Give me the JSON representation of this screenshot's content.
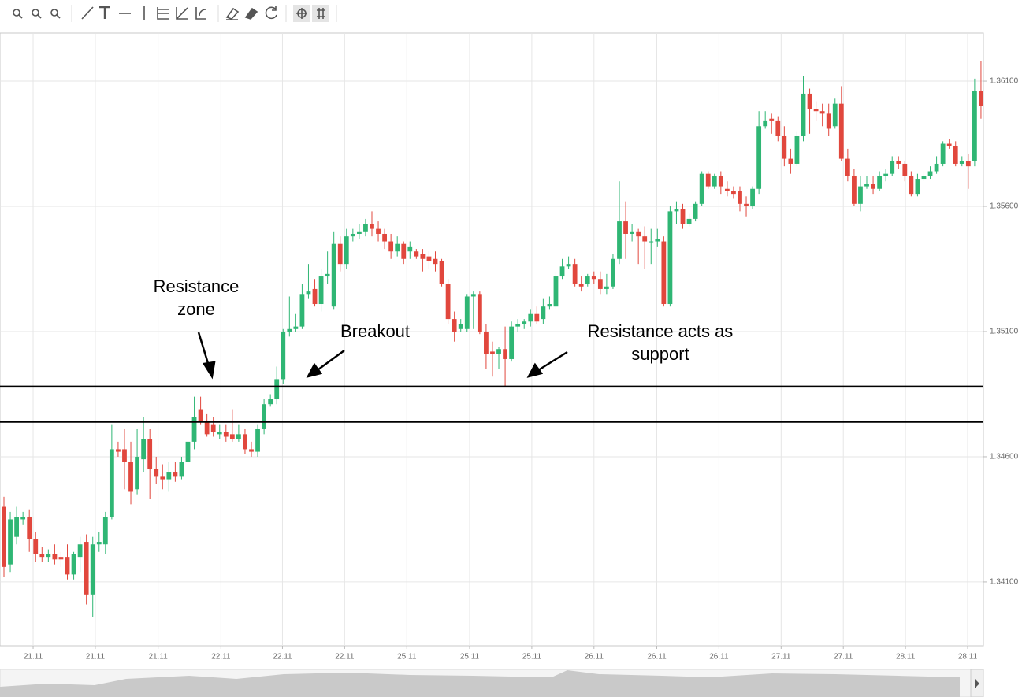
{
  "chart_data": {
    "type": "candlestick",
    "xlim": [
      -0.62,
      154.38
    ],
    "xticks": [
      {
        "value": 4.6,
        "label": "21.11"
      },
      {
        "value": 14.4,
        "label": "21.11"
      },
      {
        "value": 24.3,
        "label": "21.11"
      },
      {
        "value": 34.2,
        "label": "22.11"
      },
      {
        "value": 43.9,
        "label": "22.11"
      },
      {
        "value": 53.7,
        "label": "22.11"
      },
      {
        "value": 63.5,
        "label": "25.11"
      },
      {
        "value": 73.4,
        "label": "25.11"
      },
      {
        "value": 83.2,
        "label": "25.11"
      },
      {
        "value": 93.0,
        "label": "26.11"
      },
      {
        "value": 102.9,
        "label": "26.11"
      },
      {
        "value": 112.7,
        "label": "26.11"
      },
      {
        "value": 122.5,
        "label": "27.11"
      },
      {
        "value": 132.3,
        "label": "27.11"
      },
      {
        "value": 142.1,
        "label": "28.11"
      },
      {
        "value": 151.9,
        "label": "28.11"
      }
    ],
    "ylim": [
      1.33845,
      1.36292
    ],
    "yticks": [
      {
        "value": 1.341,
        "label": "1.34100"
      },
      {
        "value": 1.346,
        "label": "1.34600"
      },
      {
        "value": 1.351,
        "label": "1.35100"
      },
      {
        "value": 1.356,
        "label": "1.35600"
      },
      {
        "value": 1.361,
        "label": "1.36100"
      }
    ],
    "grid": true,
    "up_color": "#2fb674",
    "down_color": "#e1473d",
    "open": [
      1.344,
      1.3417,
      1.3428,
      1.3435,
      1.3436,
      1.3427,
      1.3421,
      1.342,
      1.3421,
      1.342,
      1.342,
      1.3413,
      1.342,
      1.3426,
      1.3405,
      1.3425,
      1.3425,
      1.3436,
      1.3463,
      1.3463,
      1.3458,
      1.3447,
      1.3459,
      1.3467,
      1.3455,
      1.3452,
      1.3451,
      1.3454,
      1.3452,
      1.3458,
      1.3466,
      1.3479,
      1.3474,
      1.3473,
      1.3469,
      1.347,
      1.3469,
      1.3467,
      1.3469,
      1.3463,
      1.3462,
      1.3471,
      1.3481,
      1.3483,
      1.3491,
      1.351,
      1.3511,
      1.3512,
      1.3525,
      1.3527,
      1.3521,
      1.3532,
      1.352,
      1.3545,
      1.3537,
      1.3548,
      1.3549,
      1.355,
      1.3553,
      1.3551,
      1.3549,
      1.3546,
      1.3542,
      1.3545,
      1.3542,
      1.3542,
      1.3541,
      1.354,
      1.3539,
      1.3538,
      1.3529,
      1.3515,
      1.3511,
      1.3511,
      1.3524,
      1.3525,
      1.351,
      1.3502,
      1.3501,
      1.3503,
      1.3499,
      1.3512,
      1.3513,
      1.3514,
      1.3517,
      1.3515,
      1.352,
      1.352,
      1.3532,
      1.3536,
      1.3537,
      1.3529,
      1.3529,
      1.3532,
      1.3531,
      1.3527,
      1.3528,
      1.3539,
      1.3554,
      1.3549,
      1.355,
      1.3548,
      1.3546,
      1.3546,
      1.3546,
      1.3521,
      1.3558,
      1.3559,
      1.3553,
      1.3555,
      1.3561,
      1.3573,
      1.3568,
      1.3572,
      1.3567,
      1.3566,
      1.3566,
      1.3561,
      1.356,
      1.3567,
      1.3592,
      1.3595,
      1.3594,
      1.3588,
      1.3579,
      1.3577,
      1.3588,
      1.3605,
      1.3599,
      1.3598,
      1.3597,
      1.3592,
      1.3601,
      1.3579,
      1.3572,
      1.3561,
      1.3568,
      1.3569,
      1.3567,
      1.3572,
      1.3573,
      1.3578,
      1.3577,
      1.3572,
      1.3565,
      1.3571,
      1.3572,
      1.3574,
      1.3577,
      1.3585,
      1.3584,
      1.3577,
      1.3578,
      1.3578,
      1.3606
    ],
    "high": [
      1.3444,
      1.3438,
      1.344,
      1.3438,
      1.3439,
      1.343,
      1.3424,
      1.3423,
      1.3425,
      1.3422,
      1.3425,
      1.3422,
      1.3428,
      1.3429,
      1.3428,
      1.343,
      1.3438,
      1.3473,
      1.3466,
      1.3471,
      1.3466,
      1.3471,
      1.3476,
      1.3471,
      1.346,
      1.3457,
      1.3458,
      1.3458,
      1.346,
      1.3468,
      1.3484,
      1.3484,
      1.3477,
      1.3476,
      1.3473,
      1.3473,
      1.3479,
      1.3473,
      1.3471,
      1.3466,
      1.3473,
      1.3483,
      1.3485,
      1.3496,
      1.3511,
      1.3524,
      1.3517,
      1.3529,
      1.3537,
      1.3531,
      1.3535,
      1.3542,
      1.355,
      1.3548,
      1.3551,
      1.3551,
      1.3553,
      1.3555,
      1.3558,
      1.3554,
      1.3551,
      1.3549,
      1.3548,
      1.3546,
      1.3546,
      1.3543,
      1.3543,
      1.3542,
      1.3542,
      1.3539,
      1.3531,
      1.3518,
      1.3515,
      1.3525,
      1.3526,
      1.3526,
      1.3513,
      1.3506,
      1.3504,
      1.3512,
      1.3514,
      1.3515,
      1.3515,
      1.3519,
      1.352,
      1.3523,
      1.3524,
      1.3534,
      1.3539,
      1.354,
      1.3539,
      1.3532,
      1.3533,
      1.3534,
      1.3534,
      1.3533,
      1.3541,
      1.357,
      1.3562,
      1.3553,
      1.3551,
      1.3552,
      1.3551,
      1.3551,
      1.3548,
      1.356,
      1.3562,
      1.3561,
      1.3557,
      1.3562,
      1.3574,
      1.3574,
      1.3573,
      1.3574,
      1.357,
      1.3568,
      1.3568,
      1.3564,
      1.3568,
      1.3598,
      1.3598,
      1.3597,
      1.3596,
      1.3592,
      1.3583,
      1.359,
      1.3612,
      1.3607,
      1.3602,
      1.3601,
      1.3601,
      1.3603,
      1.3608,
      1.3583,
      1.3575,
      1.3572,
      1.3572,
      1.3572,
      1.3574,
      1.3575,
      1.358,
      1.358,
      1.3578,
      1.3574,
      1.3573,
      1.3574,
      1.3576,
      1.358,
      1.3586,
      1.3587,
      1.3586,
      1.358,
      1.3581,
      1.3611,
      1.3618
    ],
    "low": [
      1.3412,
      1.3414,
      1.3425,
      1.3433,
      1.3422,
      1.3418,
      1.3418,
      1.3418,
      1.3417,
      1.3416,
      1.3411,
      1.3411,
      1.3414,
      1.3401,
      1.3396,
      1.3422,
      1.3421,
      1.3435,
      1.346,
      1.3447,
      1.3441,
      1.3445,
      1.3454,
      1.3443,
      1.3449,
      1.3447,
      1.3446,
      1.345,
      1.3451,
      1.3457,
      1.3463,
      1.3473,
      1.3468,
      1.3468,
      1.3467,
      1.3466,
      1.3466,
      1.3466,
      1.3461,
      1.346,
      1.346,
      1.3469,
      1.348,
      1.3481,
      1.3489,
      1.3508,
      1.351,
      1.3511,
      1.3523,
      1.352,
      1.3518,
      1.3529,
      1.3519,
      1.3534,
      1.3535,
      1.3546,
      1.3547,
      1.3548,
      1.3548,
      1.3546,
      1.3543,
      1.3539,
      1.354,
      1.3537,
      1.3539,
      1.3539,
      1.3534,
      1.3535,
      1.3534,
      1.3528,
      1.3513,
      1.3506,
      1.351,
      1.351,
      1.3511,
      1.3509,
      1.3495,
      1.3492,
      1.3495,
      1.3488,
      1.3498,
      1.351,
      1.3511,
      1.3512,
      1.3513,
      1.3513,
      1.3519,
      1.3519,
      1.3531,
      1.3535,
      1.3528,
      1.3526,
      1.3528,
      1.3529,
      1.3525,
      1.3525,
      1.3527,
      1.3537,
      1.3539,
      1.3546,
      1.3537,
      1.3535,
      1.3537,
      1.3544,
      1.352,
      1.352,
      1.3553,
      1.3551,
      1.3552,
      1.3554,
      1.356,
      1.3567,
      1.3567,
      1.3565,
      1.3564,
      1.3563,
      1.3558,
      1.3556,
      1.3559,
      1.3565,
      1.3591,
      1.3589,
      1.3586,
      1.3576,
      1.3573,
      1.3576,
      1.3586,
      1.3589,
      1.3594,
      1.3592,
      1.3588,
      1.3591,
      1.3578,
      1.357,
      1.356,
      1.3558,
      1.3567,
      1.3565,
      1.3566,
      1.357,
      1.3572,
      1.3575,
      1.357,
      1.3564,
      1.3564,
      1.357,
      1.3571,
      1.3573,
      1.3576,
      1.3583,
      1.3576,
      1.3576,
      1.3567,
      1.3576,
      1.3595
    ],
    "close": [
      1.3416,
      1.3435,
      1.3436,
      1.3436,
      1.3427,
      1.3421,
      1.342,
      1.3421,
      1.3419,
      1.3419,
      1.3413,
      1.3421,
      1.3425,
      1.3405,
      1.3425,
      1.3426,
      1.3436,
      1.3463,
      1.3462,
      1.3458,
      1.3446,
      1.346,
      1.3467,
      1.3455,
      1.3452,
      1.3451,
      1.3454,
      1.3452,
      1.3458,
      1.3466,
      1.3476,
      1.3474,
      1.3469,
      1.347,
      1.347,
      1.3468,
      1.3467,
      1.3469,
      1.3463,
      1.3462,
      1.3471,
      1.3481,
      1.3483,
      1.3491,
      1.351,
      1.3511,
      1.3512,
      1.3525,
      1.3526,
      1.3521,
      1.3532,
      1.3533,
      1.3545,
      1.3537,
      1.3548,
      1.3549,
      1.355,
      1.3553,
      1.3551,
      1.3549,
      1.3546,
      1.3542,
      1.3545,
      1.3539,
      1.3544,
      1.354,
      1.3539,
      1.3538,
      1.3537,
      1.3529,
      1.3515,
      1.351,
      1.3513,
      1.3524,
      1.3525,
      1.351,
      1.3501,
      1.3501,
      1.3503,
      1.3499,
      1.3512,
      1.3513,
      1.3514,
      1.3517,
      1.3514,
      1.352,
      1.3521,
      1.3532,
      1.3536,
      1.3537,
      1.3529,
      1.3528,
      1.3532,
      1.3531,
      1.3527,
      1.3528,
      1.3539,
      1.3554,
      1.3549,
      1.355,
      1.3548,
      1.3546,
      1.3546,
      1.3547,
      1.3521,
      1.3558,
      1.3559,
      1.3553,
      1.3555,
      1.3561,
      1.3573,
      1.3568,
      1.3572,
      1.3568,
      1.3566,
      1.3565,
      1.3561,
      1.356,
      1.3567,
      1.3592,
      1.3594,
      1.3594,
      1.3588,
      1.3579,
      1.3577,
      1.3588,
      1.3605,
      1.3599,
      1.3598,
      1.3597,
      1.3591,
      1.3601,
      1.3579,
      1.3572,
      1.3561,
      1.3568,
      1.3569,
      1.3567,
      1.3572,
      1.3573,
      1.3578,
      1.3577,
      1.3572,
      1.3565,
      1.3571,
      1.3572,
      1.3574,
      1.3577,
      1.3585,
      1.3584,
      1.3577,
      1.3578,
      1.3576,
      1.3606,
      1.36
    ],
    "horizontal_lines": [
      1.3488,
      1.3474
    ],
    "annotations": [
      {
        "lines": [
          "Resistance",
          "zone"
        ]
      },
      {
        "lines": [
          "Breakout"
        ]
      },
      {
        "lines": [
          "Resistance acts as",
          "support"
        ]
      }
    ]
  }
}
